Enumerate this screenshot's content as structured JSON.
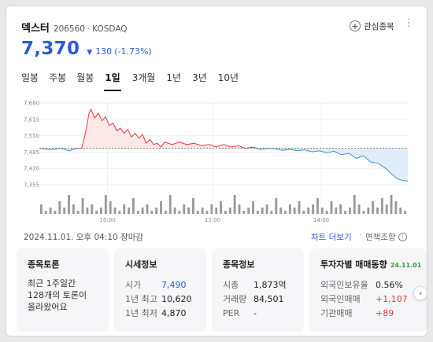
{
  "header": {
    "name": "덱스터",
    "code": "206560",
    "separator": "·",
    "market": "KOSDAQ",
    "watch_label": "관심종목",
    "more_icon": "⋮"
  },
  "price": {
    "current": "7,370",
    "direction_icon": "▼",
    "change": "130",
    "change_pct": "(-1.73%)"
  },
  "period_tabs": [
    "일봉",
    "주봉",
    "월봉",
    "1일",
    "3개월",
    "1년",
    "3년",
    "10년"
  ],
  "active_tab": "1일",
  "chart_data": {
    "type": "line",
    "title": "",
    "y_ticks": [
      "7,680",
      "7,615",
      "7,550",
      "7,485",
      "7,420",
      "7,355"
    ],
    "x_ticks": [
      "10:00",
      "12:00",
      "14:00"
    ],
    "ylim": [
      7355,
      7680
    ],
    "reference_price": 7500,
    "colors": {
      "above": "#e0383e",
      "below": "#3b8fd9",
      "above_fill": "#fde8e8",
      "below_fill": "#e1eefa",
      "volume": "#999999"
    },
    "price_series": [
      [
        0.0,
        7500
      ],
      [
        0.03,
        7495
      ],
      [
        0.06,
        7500
      ],
      [
        0.08,
        7490
      ],
      [
        0.1,
        7500
      ],
      [
        0.115,
        7500
      ],
      [
        0.12,
        7530
      ],
      [
        0.125,
        7560
      ],
      [
        0.13,
        7600
      ],
      [
        0.135,
        7640
      ],
      [
        0.14,
        7655
      ],
      [
        0.15,
        7620
      ],
      [
        0.16,
        7640
      ],
      [
        0.17,
        7610
      ],
      [
        0.18,
        7625
      ],
      [
        0.19,
        7590
      ],
      [
        0.2,
        7600
      ],
      [
        0.21,
        7570
      ],
      [
        0.22,
        7580
      ],
      [
        0.23,
        7560
      ],
      [
        0.24,
        7575
      ],
      [
        0.25,
        7545
      ],
      [
        0.26,
        7560
      ],
      [
        0.27,
        7540
      ],
      [
        0.28,
        7555
      ],
      [
        0.29,
        7520
      ],
      [
        0.3,
        7535
      ],
      [
        0.31,
        7515
      ],
      [
        0.32,
        7520
      ],
      [
        0.33,
        7505
      ],
      [
        0.34,
        7525
      ],
      [
        0.36,
        7515
      ],
      [
        0.38,
        7525
      ],
      [
        0.4,
        7515
      ],
      [
        0.42,
        7520
      ],
      [
        0.44,
        7510
      ],
      [
        0.46,
        7515
      ],
      [
        0.48,
        7505
      ],
      [
        0.5,
        7515
      ],
      [
        0.52,
        7505
      ],
      [
        0.54,
        7510
      ],
      [
        0.56,
        7500
      ],
      [
        0.58,
        7505
      ],
      [
        0.6,
        7495
      ],
      [
        0.62,
        7500
      ],
      [
        0.64,
        7498
      ],
      [
        0.66,
        7492
      ],
      [
        0.68,
        7496
      ],
      [
        0.7,
        7490
      ],
      [
        0.72,
        7494
      ],
      [
        0.74,
        7486
      ],
      [
        0.76,
        7490
      ],
      [
        0.78,
        7482
      ],
      [
        0.8,
        7488
      ],
      [
        0.82,
        7474
      ],
      [
        0.84,
        7480
      ],
      [
        0.86,
        7460
      ],
      [
        0.88,
        7470
      ],
      [
        0.9,
        7445
      ],
      [
        0.92,
        7440
      ],
      [
        0.94,
        7420
      ],
      [
        0.955,
        7400
      ],
      [
        0.97,
        7380
      ],
      [
        0.985,
        7372
      ],
      [
        1.0,
        7370
      ]
    ],
    "volume_series": [
      3,
      1,
      2,
      1,
      4,
      2,
      6,
      3,
      1,
      5,
      2,
      3,
      1,
      2,
      6,
      4,
      2,
      1,
      3,
      2,
      5,
      1,
      2,
      3,
      1,
      2,
      4,
      1,
      6,
      2,
      1,
      3,
      2,
      5,
      1,
      2,
      1,
      3,
      2,
      4,
      1,
      2,
      6,
      3,
      1,
      2,
      4,
      1,
      2,
      3,
      1,
      5,
      2,
      1,
      3,
      2,
      4,
      1,
      2,
      3,
      5,
      2,
      1,
      4,
      2,
      3,
      1,
      2,
      6,
      3,
      1,
      2,
      4,
      2,
      5,
      3,
      6,
      4,
      2,
      1
    ]
  },
  "footer": {
    "date_time": "2024.11.01. 오후 04:10 장마감",
    "chart_more": "차트 더보기",
    "separator": "·",
    "disclaimer": "면책조항",
    "info_icon": "i"
  },
  "panels": {
    "topic": {
      "title": "종목토론",
      "body": "최근 1주일간 128개의 토론이 올라왔어요"
    },
    "quote": {
      "title": "시세정보",
      "rows": [
        {
          "key": "시가",
          "value": "7,490"
        },
        {
          "key": "1년 최고",
          "value": "10,620"
        },
        {
          "key": "1년 최저",
          "value": "4,870"
        }
      ]
    },
    "info": {
      "title": "종목정보",
      "rows": [
        {
          "key": "시총",
          "value": "1,873억"
        },
        {
          "key": "거래량",
          "value": "84,501"
        },
        {
          "key": "PER",
          "value": "-"
        }
      ]
    },
    "investor": {
      "title": "투자자별 매매동향",
      "date": "24.11.01",
      "rows": [
        {
          "key": "외국인보유율",
          "value": "0.56%"
        },
        {
          "key": "외국인매매",
          "value": "+1,107"
        },
        {
          "key": "기관매매",
          "value": "+89"
        }
      ]
    }
  },
  "next_icon": "›"
}
